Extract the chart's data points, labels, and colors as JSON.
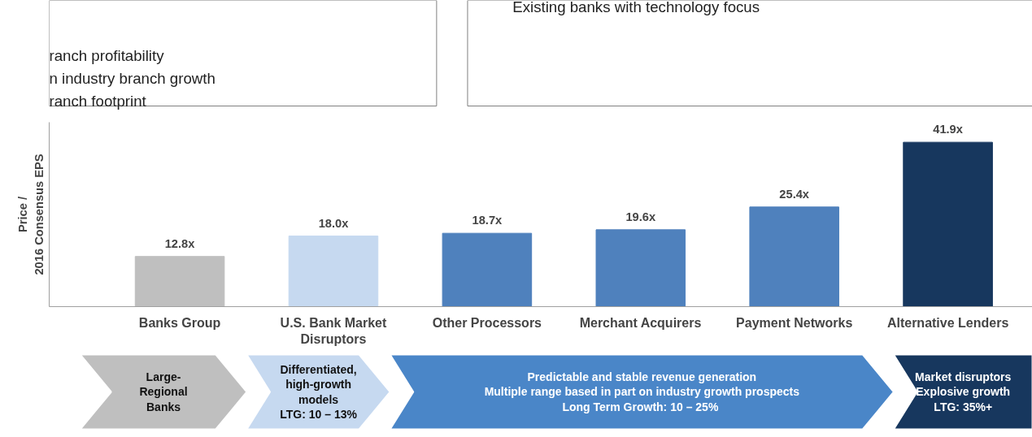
{
  "chart_data": {
    "type": "bar",
    "ylabel": "Price /\n2016 Consensus EPS",
    "categories": [
      "Banks Group",
      "U.S. Bank Market\nDisruptors",
      "Other Processors",
      "Merchant Acquirers",
      "Payment Networks",
      "Alternative Lenders"
    ],
    "values": [
      12.8,
      18.0,
      18.7,
      19.6,
      25.4,
      41.9
    ],
    "colors": [
      "#bfbfbf",
      "#c6d9f0",
      "#4f81bd",
      "#4f81bd",
      "#4f81bd",
      "#17375e"
    ],
    "value_labels": [
      "12.8x",
      "18.0x",
      "18.7x",
      "19.6x",
      "25.4x",
      "41.9x"
    ],
    "ylim": [
      0,
      47
    ],
    "tick_labels": "x",
    "grid": false,
    "annotations": [
      "ranch profitability",
      "n industry branch growth",
      "ranch footprint",
      "Existing banks with technology focus",
      "Large-\nRegional\nBanks",
      "Differentiated,\nhigh-growth\nmodels\nLTG: 10 – 13%",
      "Predictable and stable revenue generation\nMultiple range based in part on industry growth prospects\nLong Term Growth:  10 – 25%",
      "Market disruptors\nExplosive growth\nLTG: 35%+"
    ]
  }
}
